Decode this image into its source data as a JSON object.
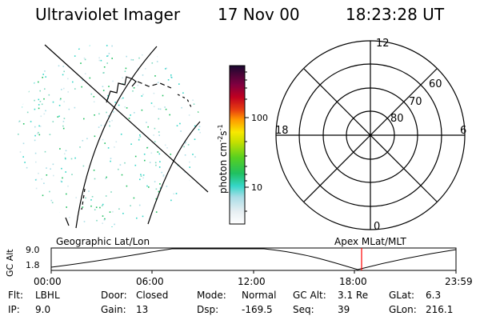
{
  "header": {
    "instrument": "Ultraviolet Imager",
    "date": "17 Nov 00",
    "time": "18:23:28 UT"
  },
  "colorbar": {
    "label": "photon cm",
    "exp1": "-2",
    "mid": "s",
    "exp2": "-1",
    "ticks": [
      "100",
      "10"
    ]
  },
  "panels": {
    "left_title": "Geographic Lat/Lon",
    "right_title": "Apex MLat/MLT"
  },
  "polar": {
    "mlt_labels": [
      "12",
      "18",
      "6",
      "0"
    ],
    "lat_labels": [
      "60",
      "70",
      "80"
    ]
  },
  "altitude_plot": {
    "ylabel": "GC Alt",
    "yticks": [
      "9.0",
      "1.8"
    ],
    "xticks": [
      "00:00",
      "06:00",
      "12:00",
      "18:00",
      "23:59"
    ],
    "marker_color": "#ff0000"
  },
  "status": {
    "row1": [
      {
        "label": "Flt:",
        "value": "LBHL"
      },
      {
        "label": "Door:",
        "value": "Closed"
      },
      {
        "label": "Mode:",
        "value": "Normal"
      },
      {
        "label": "GC Alt:",
        "value": "3.1 Re"
      },
      {
        "label": "GLat:",
        "value": "6.3"
      }
    ],
    "row2": [
      {
        "label": "IP:",
        "value": "9.0"
      },
      {
        "label": "Gain:",
        "value": "13"
      },
      {
        "label": "Dsp:",
        "value": "-169.5"
      },
      {
        "label": "Seq:",
        "value": "39"
      },
      {
        "label": "GLon:",
        "value": "216.1"
      }
    ]
  }
}
